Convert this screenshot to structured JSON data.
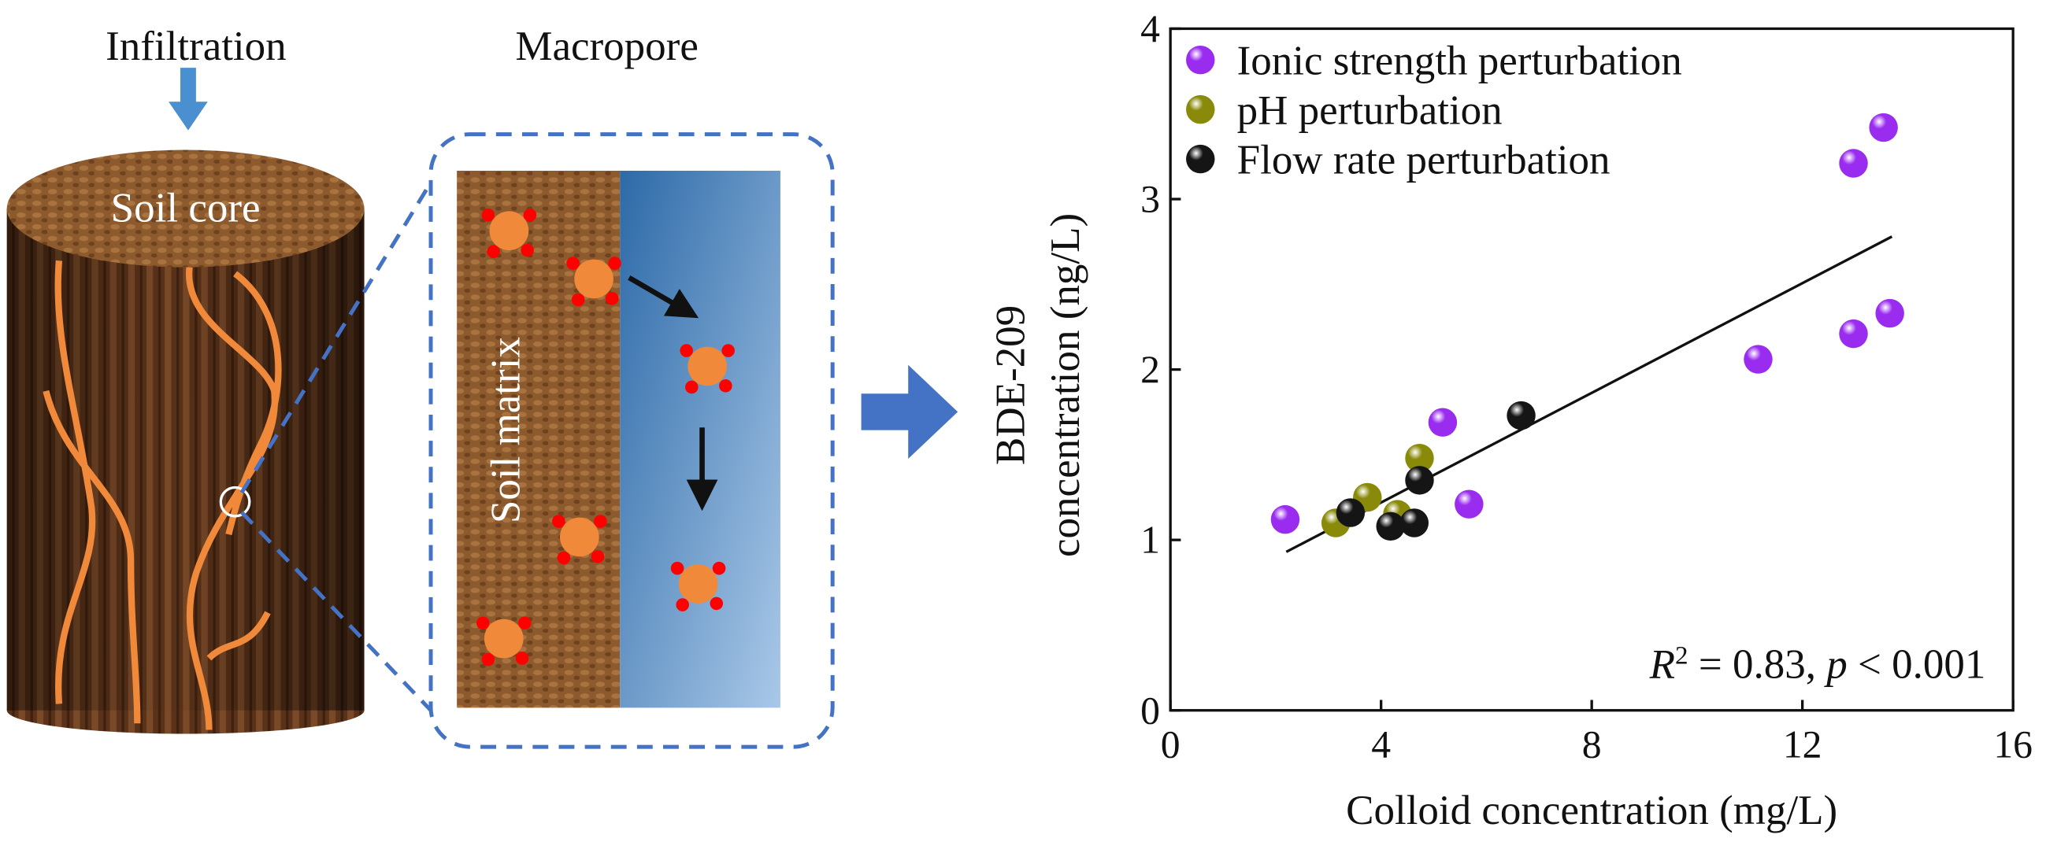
{
  "diagram": {
    "infiltration": "Infiltration",
    "macropore": "Macropore",
    "soil_core": "Soil core",
    "soil_matrix": "Soil matrix"
  },
  "chart_data": {
    "type": "scatter",
    "xlabel": "Colloid concentration (mg/L)",
    "ylabel": [
      "BDE-209",
      "concentration (ng/L)"
    ],
    "xlim": [
      0,
      16
    ],
    "xticks": [
      0,
      4,
      8,
      12,
      16
    ],
    "ylim": [
      0,
      4
    ],
    "yticks": [
      0,
      1,
      2,
      3,
      4
    ],
    "legend": "upper left",
    "series": [
      {
        "name": "Ionic strength perturbation",
        "color": "#9a2cf0",
        "x": [
          2.18,
          5.17,
          5.67,
          11.16,
          12.97,
          12.97,
          13.54,
          13.66
        ],
        "values": [
          1.12,
          1.69,
          1.21,
          2.06,
          2.21,
          3.21,
          3.42,
          2.33
        ]
      },
      {
        "name": "pH perturbation",
        "color": "#8a8a0a",
        "x": [
          3.14,
          3.74,
          4.31,
          4.73
        ],
        "values": [
          1.1,
          1.25,
          1.15,
          1.48
        ]
      },
      {
        "name": "Flow rate perturbation",
        "color": "#151515",
        "x": [
          3.42,
          4.18,
          4.63,
          4.73,
          6.66
        ],
        "values": [
          1.16,
          1.08,
          1.1,
          1.35,
          1.73
        ]
      }
    ],
    "fit_line": {
      "x": [
        2.2,
        13.7
      ],
      "values": [
        0.93,
        2.78
      ]
    },
    "annotation": [
      "R",
      "2",
      " = 0.83, ",
      "p",
      " < 0.001"
    ]
  }
}
